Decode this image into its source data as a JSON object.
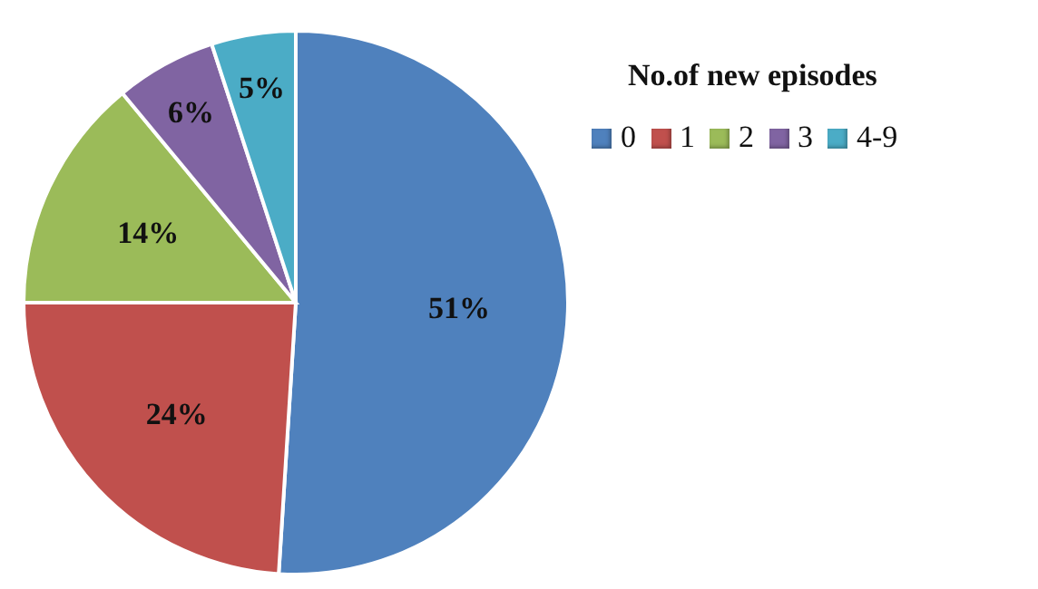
{
  "chart_data": {
    "type": "pie",
    "legend_title": "No.of new episodes",
    "categories": [
      "0",
      "1",
      "2",
      "3",
      "4-9"
    ],
    "values": [
      51,
      24,
      14,
      6,
      5
    ],
    "colors": [
      "#4f81bd",
      "#c0504d",
      "#9bbb59",
      "#8064a2",
      "#4bacc6"
    ],
    "value_labels": [
      "51%",
      "24%",
      "14%",
      "6%",
      "5%"
    ],
    "legend": "right"
  }
}
